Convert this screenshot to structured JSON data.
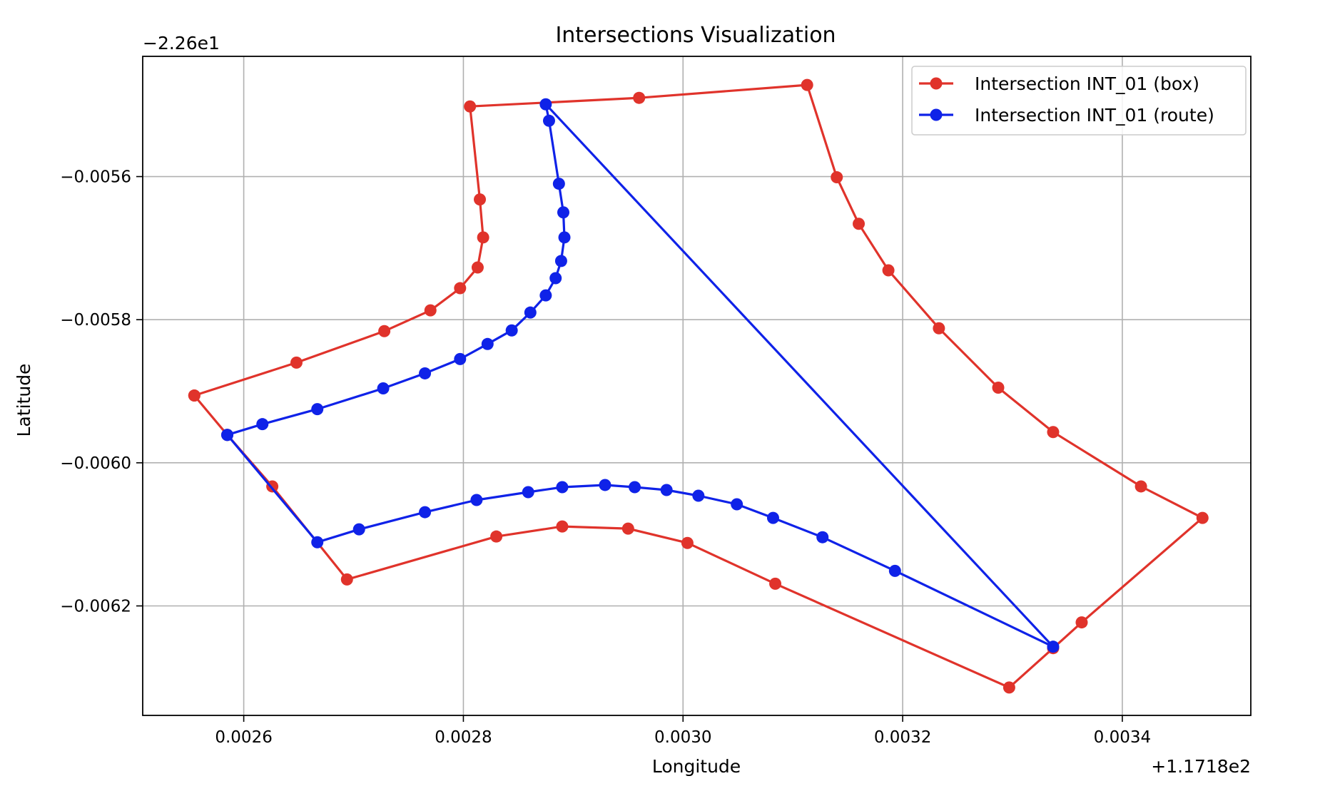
{
  "chart_data": {
    "type": "line",
    "title": "Intersections Visualization",
    "xlabel": "Longitude",
    "ylabel": "Latitude",
    "x_offset": 117.18,
    "y_offset": -22.6,
    "x_offset_label": "+1.1718e2",
    "y_offset_label": "−2.26e1",
    "xlim": [
      0.002508,
      0.003517
    ],
    "ylim": [
      -0.006353,
      -0.005432
    ],
    "xticks": [
      0.0026,
      0.0028,
      0.003,
      0.0032,
      0.0034
    ],
    "xtick_labels": [
      "0.0026",
      "0.0028",
      "0.0030",
      "0.0032",
      "0.0034"
    ],
    "yticks": [
      -0.0056,
      -0.0058,
      -0.006,
      -0.0062
    ],
    "ytick_labels": [
      "−0.0056",
      "−0.0058",
      "−0.0060",
      "−0.0062"
    ],
    "grid": true,
    "legend_position": "upper right",
    "series": [
      {
        "name": "Intersection INT_01 (box)",
        "color": "#e0332b",
        "x": [
          0.002555,
          0.002648,
          0.002728,
          0.00277,
          0.002797,
          0.002813,
          0.002818,
          0.002815,
          0.002806,
          0.00296,
          0.003113,
          0.00314,
          0.00316,
          0.003187,
          0.003233,
          0.003287,
          0.003337,
          0.003417,
          0.003473,
          0.003363,
          0.003337,
          0.003297,
          0.003084,
          0.003004,
          0.00295,
          0.00289,
          0.00283,
          0.002694,
          0.002626,
          0.002585,
          0.002555
        ],
        "y": [
          -0.005906,
          -0.00586,
          -0.005816,
          -0.005787,
          -0.005756,
          -0.005727,
          -0.005685,
          -0.005632,
          -0.005502,
          -0.00549,
          -0.005472,
          -0.005601,
          -0.005666,
          -0.005731,
          -0.005812,
          -0.005895,
          -0.005957,
          -0.006033,
          -0.006077,
          -0.006223,
          -0.006259,
          -0.006314,
          -0.006169,
          -0.006112,
          -0.006092,
          -0.006089,
          -0.006103,
          -0.006163,
          -0.006033,
          -0.005961,
          -0.005906
        ]
      },
      {
        "name": "Intersection INT_01 (route)",
        "color": "#0f22e8",
        "x": [
          0.002585,
          0.002617,
          0.002667,
          0.002727,
          0.002765,
          0.002797,
          0.002822,
          0.002844,
          0.002861,
          0.002875,
          0.002884,
          0.002889,
          0.002892,
          0.002891,
          0.002887,
          0.002878,
          0.002875,
          0.003337,
          0.003193,
          0.003127,
          0.003082,
          0.003049,
          0.003014,
          0.002985,
          0.002956,
          0.002929,
          0.00289,
          0.002859,
          0.002812,
          0.002765,
          0.002705,
          0.002667,
          0.002585
        ],
        "y": [
          -0.005961,
          -0.005946,
          -0.005925,
          -0.005896,
          -0.005875,
          -0.005855,
          -0.005834,
          -0.005815,
          -0.00579,
          -0.005766,
          -0.005742,
          -0.005718,
          -0.005685,
          -0.00565,
          -0.00561,
          -0.005522,
          -0.005499,
          -0.006257,
          -0.006151,
          -0.006104,
          -0.006077,
          -0.006058,
          -0.006046,
          -0.006038,
          -0.006034,
          -0.006031,
          -0.006034,
          -0.006041,
          -0.006052,
          -0.006069,
          -0.006093,
          -0.006111,
          -0.005961
        ]
      }
    ]
  }
}
